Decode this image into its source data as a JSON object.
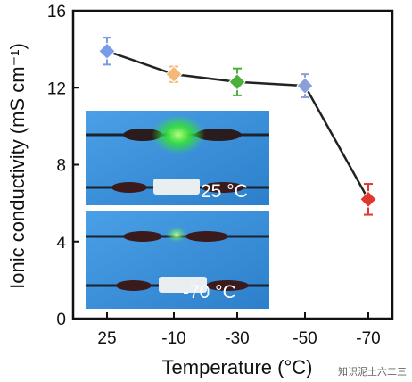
{
  "chart_data": {
    "type": "line",
    "categories": [
      "25",
      "-10",
      "-30",
      "-50",
      "-70"
    ],
    "values": [
      13.9,
      12.7,
      12.3,
      12.1,
      6.2
    ],
    "errors": [
      0.7,
      0.4,
      0.7,
      0.6,
      0.8
    ],
    "marker_colors": [
      "#7a9be8",
      "#f4b879",
      "#4caf3a",
      "#8a9fd8",
      "#e0382c"
    ],
    "xlabel": "Temperature (°C)",
    "ylabel": "Ionic conductivity (mS cm⁻¹)",
    "ylim": [
      0,
      16
    ],
    "yticks": [
      "0",
      "4",
      "8",
      "12",
      "16"
    ],
    "grid": false,
    "insets": [
      {
        "label": "25 °C"
      },
      {
        "label": "-70 °C"
      }
    ]
  },
  "watermark": "知识泥土六二三",
  "colors": {
    "line": "#222222",
    "inset_bg": "#3f8fd8",
    "led_glow": "#35e03a"
  }
}
